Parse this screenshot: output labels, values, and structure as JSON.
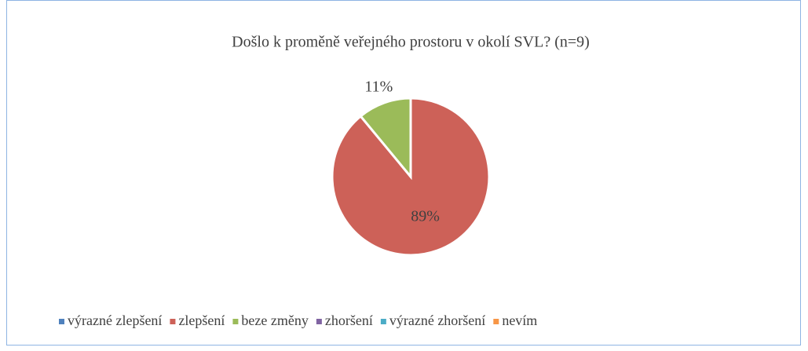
{
  "chart_data": {
    "type": "pie",
    "title": "Došlo k proměně veřejného prostoru v okolí SVL? (n=9)",
    "categories": [
      "výrazné zlepšení",
      "zlepšení",
      "beze změny",
      "zhoršení",
      "výrazné zhoršení",
      "nevím"
    ],
    "values": [
      0,
      89,
      11,
      0,
      0,
      0
    ],
    "value_labels": [
      null,
      "89%",
      "11%",
      null,
      null,
      null
    ],
    "colors": [
      "#4f81bd",
      "#cd6158",
      "#9bbb59",
      "#8064a2",
      "#4bacc6",
      "#f79646"
    ],
    "legend": "bottom"
  }
}
